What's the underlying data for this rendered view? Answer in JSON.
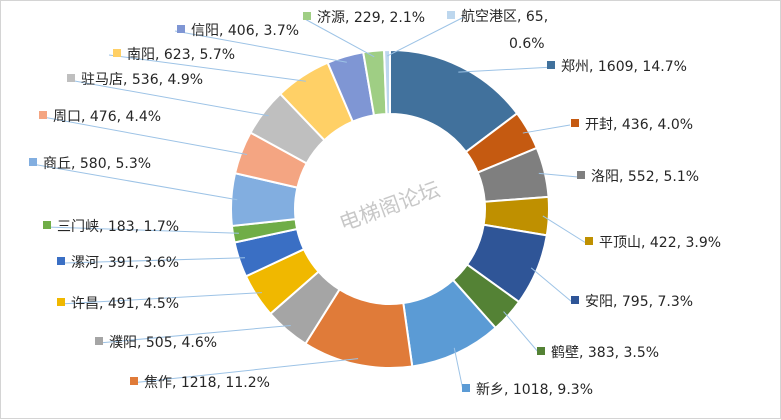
{
  "chart_data": {
    "type": "pie",
    "variant": "donut",
    "title": "",
    "watermark": "电梯阁论坛",
    "label_format": "{name}, {value}, {percent}",
    "slices": [
      {
        "name": "郑州",
        "value": 1609,
        "percent": "14.7%",
        "color": "#41719c"
      },
      {
        "name": "开封",
        "value": 436,
        "percent": "4.0%",
        "color": "#c55a11"
      },
      {
        "name": "洛阳",
        "value": 552,
        "percent": "5.1%",
        "color": "#7f7f7f"
      },
      {
        "name": "平顶山",
        "value": 422,
        "percent": "3.9%",
        "color": "#bf9000"
      },
      {
        "name": "安阳",
        "value": 795,
        "percent": "7.3%",
        "color": "#2f5597"
      },
      {
        "name": "鹤壁",
        "value": 383,
        "percent": "3.5%",
        "color": "#548235"
      },
      {
        "name": "新乡",
        "value": 1018,
        "percent": "9.3%",
        "color": "#5b9bd5"
      },
      {
        "name": "焦作",
        "value": 1218,
        "percent": "11.2%",
        "color": "#e07b39"
      },
      {
        "name": "濮阳",
        "value": 505,
        "percent": "4.6%",
        "color": "#a5a5a5"
      },
      {
        "name": "许昌",
        "value": 491,
        "percent": "4.5%",
        "color": "#f0b800"
      },
      {
        "name": "漯河",
        "value": 391,
        "percent": "3.6%",
        "color": "#3a6fc4"
      },
      {
        "name": "三门峡",
        "value": 183,
        "percent": "1.7%",
        "color": "#70ad47"
      },
      {
        "name": "商丘",
        "value": 580,
        "percent": "5.3%",
        "color": "#82aee0"
      },
      {
        "name": "周口",
        "value": 476,
        "percent": "4.4%",
        "color": "#f4a582"
      },
      {
        "name": "驻马店",
        "value": 536,
        "percent": "4.9%",
        "color": "#bfbfbf"
      },
      {
        "name": "南阳",
        "value": 623,
        "percent": "5.7%",
        "color": "#ffd066"
      },
      {
        "name": "信阳",
        "value": 406,
        "percent": "3.7%",
        "color": "#7f96d4"
      },
      {
        "name": "济源",
        "value": 229,
        "percent": "2.1%",
        "color": "#9fce84"
      },
      {
        "name": "航空港区",
        "value": 65,
        "percent": "0.6%",
        "color": "#bdd7ee"
      }
    ]
  }
}
